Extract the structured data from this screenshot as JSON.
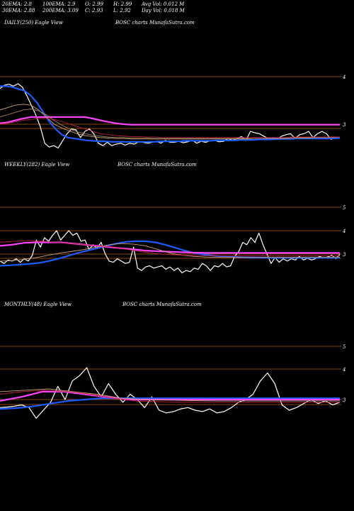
{
  "header": {
    "ema20": "20EMA: 2.8",
    "ema100": "100EMA: 2.9",
    "open": "O: 2.99",
    "high": "H: 2.99",
    "avg_vol": "Avg Vol: 0.012  M",
    "ema30": "30EMA: 2.88",
    "ema200": "200EMA: 3.09",
    "close": "C: 2.93",
    "low": "L: 2.92",
    "day_vol": "Day Vol: 0.018  M"
  },
  "colors": {
    "background": "#000000",
    "price": "#ffffff",
    "ema_blue": "#1e5bff",
    "ema_magenta": "#ff44ff",
    "grid_orange": "#b8610f",
    "ema_tan": "#c8a27a",
    "ema_red": "#c02040"
  },
  "chart_data": [
    {
      "type": "line",
      "title": "DAILY(250) Eagle  View",
      "subtitle": "BOSC charts MunafaSutra.com",
      "ytick_labels": [
        "4",
        "3"
      ],
      "ylim": [
        2.4,
        4.1
      ],
      "series": [
        {
          "name": "price",
          "color": "#ffffff",
          "values": [
            3.75,
            3.82,
            3.84,
            3.8,
            3.85,
            3.78,
            3.6,
            3.4,
            3.2,
            2.95,
            2.6,
            2.52,
            2.55,
            2.5,
            2.65,
            2.8,
            2.9,
            2.88,
            2.72,
            2.85,
            2.9,
            2.8,
            2.6,
            2.55,
            2.62,
            2.55,
            2.58,
            2.6,
            2.56,
            2.6,
            2.58,
            2.63,
            2.62,
            2.6,
            2.62,
            2.64,
            2.6,
            2.66,
            2.62,
            2.62,
            2.64,
            2.61,
            2.63,
            2.66,
            2.6,
            2.64,
            2.62,
            2.65,
            2.66,
            2.63,
            2.64,
            2.7,
            2.66,
            2.7,
            2.74,
            2.66,
            2.85,
            2.82,
            2.8,
            2.75,
            2.7,
            2.72,
            2.68,
            2.75,
            2.78,
            2.8,
            2.7,
            2.78,
            2.8,
            2.85,
            2.72,
            2.8,
            2.85,
            2.8,
            2.68,
            2.72,
            2.7
          ]
        },
        {
          "name": "ema-blue",
          "color": "#1e5bff",
          "values": [
            3.8,
            3.8,
            3.78,
            3.74,
            3.7,
            3.6,
            3.45,
            3.25,
            3.05,
            2.9,
            2.78,
            2.72,
            2.7,
            2.68,
            2.66,
            2.65,
            2.64,
            2.64,
            2.63,
            2.63,
            2.63,
            2.63,
            2.63,
            2.63,
            2.63,
            2.63,
            2.64,
            2.64,
            2.64,
            2.64,
            2.65,
            2.65,
            2.65,
            2.65,
            2.65,
            2.66,
            2.66,
            2.66,
            2.66,
            2.67,
            2.67,
            2.67,
            2.68,
            2.68,
            2.68,
            2.69,
            2.69,
            2.69,
            2.7,
            2.7,
            2.7,
            2.7,
            2.7,
            2.7,
            2.7,
            2.71
          ]
        },
        {
          "name": "ema-magenta",
          "color": "#ff44ff",
          "values": [
            3.02,
            3.04,
            3.08,
            3.12,
            3.15,
            3.15,
            3.15,
            3.15,
            3.15,
            3.15,
            3.15,
            3.15,
            3.12,
            3.08,
            3.05,
            3.02,
            3.0,
            2.99,
            2.99,
            2.99,
            2.99,
            2.99,
            2.99,
            2.99,
            2.99,
            2.99,
            2.99,
            2.99,
            2.99,
            2.99,
            2.99,
            2.99,
            2.99,
            2.99,
            2.99,
            2.99,
            2.99,
            2.99,
            2.99,
            2.99,
            2.99,
            2.99,
            2.99,
            2.99,
            2.99
          ]
        },
        {
          "name": "ema-tan-1",
          "color": "#c8a27a",
          "values": [
            3.3,
            3.35,
            3.4,
            3.42,
            3.4,
            3.3,
            3.15,
            3.0,
            2.92,
            2.86,
            2.8,
            2.76,
            2.74,
            2.72,
            2.71,
            2.7,
            2.7,
            2.69,
            2.69,
            2.69,
            2.69,
            2.69,
            2.69,
            2.69,
            2.69,
            2.69,
            2.69,
            2.69,
            2.69,
            2.69,
            2.69,
            2.69,
            2.69,
            2.7,
            2.7,
            2.7,
            2.7,
            2.7,
            2.71,
            2.71,
            2.71,
            2.72,
            2.72,
            2.72,
            2.73
          ]
        },
        {
          "name": "ema-tan-2",
          "color": "#a08060",
          "values": [
            3.15,
            3.2,
            3.25,
            3.3,
            3.32,
            3.28,
            3.2,
            3.08,
            2.98,
            2.9,
            2.84,
            2.8,
            2.77,
            2.75,
            2.73,
            2.72,
            2.72,
            2.71,
            2.71,
            2.71,
            2.7,
            2.7,
            2.7,
            2.7,
            2.7,
            2.7,
            2.7,
            2.7,
            2.7,
            2.7,
            2.7,
            2.7,
            2.7,
            2.7,
            2.7,
            2.71,
            2.71,
            2.71,
            2.71,
            2.72,
            2.72,
            2.72,
            2.72,
            2.73,
            2.73
          ]
        },
        {
          "name": "ema-red",
          "color": "#c02040",
          "values": [
            3.0,
            3.02,
            3.05,
            3.08,
            3.1,
            3.12,
            3.12,
            3.1,
            3.06,
            3.0,
            2.95,
            2.9,
            2.85,
            2.8,
            2.78,
            2.76,
            2.75,
            2.74,
            2.74,
            2.73,
            2.73,
            2.72,
            2.72,
            2.72,
            2.72,
            2.72,
            2.72,
            2.72,
            2.72,
            2.72,
            2.72,
            2.72,
            2.72,
            2.72,
            2.72,
            2.72,
            2.72,
            2.72,
            2.73,
            2.73,
            2.73,
            2.73,
            2.73,
            2.73,
            2.73
          ]
        }
      ]
    },
    {
      "type": "line",
      "title": "WEEKLY(282) Eagle  View",
      "subtitle": "BOSC charts MunafaSutra.com",
      "ytick_labels": [
        "5",
        "4",
        "3"
      ],
      "ylim": [
        1.7,
        5.3
      ],
      "series": [
        {
          "name": "price",
          "color": "#ffffff",
          "values": [
            2.7,
            2.6,
            2.75,
            2.7,
            2.8,
            2.65,
            2.8,
            2.7,
            2.95,
            3.6,
            3.3,
            3.7,
            3.55,
            3.8,
            4.0,
            3.6,
            3.8,
            4.0,
            3.8,
            3.9,
            3.55,
            3.6,
            3.2,
            3.4,
            3.25,
            3.5,
            3.0,
            2.7,
            2.65,
            2.8,
            2.7,
            2.6,
            2.65,
            3.3,
            2.4,
            2.3,
            2.45,
            2.5,
            2.4,
            2.45,
            2.5,
            2.35,
            2.45,
            2.3,
            2.4,
            2.2,
            2.3,
            2.25,
            2.4,
            2.35,
            2.6,
            2.5,
            2.3,
            2.5,
            2.45,
            2.6,
            2.45,
            2.5,
            2.9,
            3.1,
            3.5,
            3.4,
            3.7,
            3.5,
            3.9,
            3.4,
            3.0,
            2.6,
            2.85,
            2.65,
            2.8,
            2.7,
            2.8,
            2.75,
            2.9,
            2.75,
            2.82,
            2.75,
            2.8,
            2.9,
            2.82,
            2.88,
            2.95,
            2.8,
            3.0
          ]
        },
        {
          "name": "ema-blue",
          "color": "#1e5bff",
          "values": [
            2.5,
            2.52,
            2.55,
            2.58,
            2.62,
            2.7,
            2.8,
            2.92,
            3.05,
            3.15,
            3.25,
            3.35,
            3.45,
            3.52,
            3.55,
            3.55,
            3.5,
            3.4,
            3.28,
            3.15,
            3.05,
            2.98,
            2.93,
            2.9,
            2.88,
            2.86,
            2.85,
            2.85,
            2.84,
            2.84,
            2.84,
            2.84,
            2.84,
            2.84,
            2.84,
            2.84
          ]
        },
        {
          "name": "ema-magenta",
          "color": "#ff44ff",
          "values": [
            3.35,
            3.4,
            3.48,
            3.5,
            3.5,
            3.5,
            3.45,
            3.4,
            3.35,
            3.3,
            3.25,
            3.2,
            3.15,
            3.12,
            3.1,
            3.08,
            3.06,
            3.05,
            3.05,
            3.05,
            3.05,
            3.05,
            3.05,
            3.05,
            3.05,
            3.05,
            3.05,
            3.05,
            3.05
          ]
        },
        {
          "name": "ema-tan",
          "color": "#c8a27a",
          "values": [
            2.7,
            2.72,
            2.78,
            2.85,
            2.95,
            3.05,
            3.12,
            3.2,
            3.3,
            3.4,
            3.45,
            3.42,
            3.35,
            3.2,
            3.05,
            2.95,
            2.9,
            2.87,
            2.86,
            2.86,
            2.86,
            2.86,
            2.86,
            2.86,
            2.86,
            2.87,
            2.87,
            2.87,
            2.87
          ]
        },
        {
          "name": "ema-red",
          "color": "#c02040",
          "values": [
            3.5,
            3.55,
            3.58,
            3.55,
            3.5,
            3.45,
            3.4,
            3.35,
            3.3,
            3.2,
            3.1,
            3.02,
            2.98,
            2.95,
            2.93,
            2.92,
            2.92,
            2.92,
            2.92,
            2.92,
            2.92,
            2.92,
            2.92,
            2.92,
            2.92
          ]
        }
      ]
    },
    {
      "type": "line",
      "title": "MONTHLY(48) Eagle  View",
      "subtitle": "BOSC charts MunafaSutra.com",
      "ytick_labels": [
        "5",
        "4",
        "3"
      ],
      "ylim": [
        1.7,
        5.3
      ],
      "series": [
        {
          "name": "price",
          "color": "#ffffff",
          "values": [
            2.7,
            2.72,
            2.75,
            2.8,
            2.7,
            2.3,
            2.6,
            2.9,
            3.5,
            3.0,
            3.7,
            3.9,
            4.2,
            3.5,
            3.1,
            3.6,
            3.2,
            2.9,
            3.2,
            3.0,
            2.7,
            3.1,
            2.6,
            2.5,
            2.55,
            2.65,
            2.7,
            2.6,
            2.55,
            2.65,
            2.5,
            2.55,
            2.7,
            2.9,
            3.0,
            3.2,
            3.7,
            4.0,
            3.6,
            2.8,
            2.6,
            2.7,
            2.85,
            3.0,
            2.85,
            2.95,
            2.8,
            2.9
          ]
        },
        {
          "name": "ema-blue",
          "color": "#1e5bff",
          "values": [
            2.65,
            2.68,
            2.75,
            2.85,
            2.95,
            3.0,
            3.05,
            3.05,
            3.05,
            3.05,
            3.05,
            3.05,
            3.05,
            3.05,
            3.05,
            3.05,
            3.05,
            3.05,
            3.05,
            3.05,
            3.05
          ]
        },
        {
          "name": "ema-magenta",
          "color": "#ff44ff",
          "values": [
            2.95,
            3.1,
            3.3,
            3.3,
            3.2,
            3.1,
            3.0,
            3.0,
            3.0,
            3.0,
            3.0,
            3.0,
            3.0,
            3.0,
            3.0,
            3.0,
            3.0
          ]
        },
        {
          "name": "ema-tan",
          "color": "#c8a27a",
          "values": [
            3.3,
            3.35,
            3.4,
            3.3,
            3.2,
            3.05,
            3.0,
            2.98,
            2.96,
            2.95,
            2.95,
            2.95,
            2.95,
            2.95,
            2.95
          ]
        },
        {
          "name": "ema-red",
          "color": "#c02040",
          "values": [
            3.2,
            3.3,
            3.35,
            3.3,
            3.2,
            3.05,
            2.95,
            2.92,
            2.9,
            2.9,
            2.9,
            2.9,
            2.9,
            2.9,
            2.9,
            2.9
          ]
        }
      ]
    }
  ]
}
